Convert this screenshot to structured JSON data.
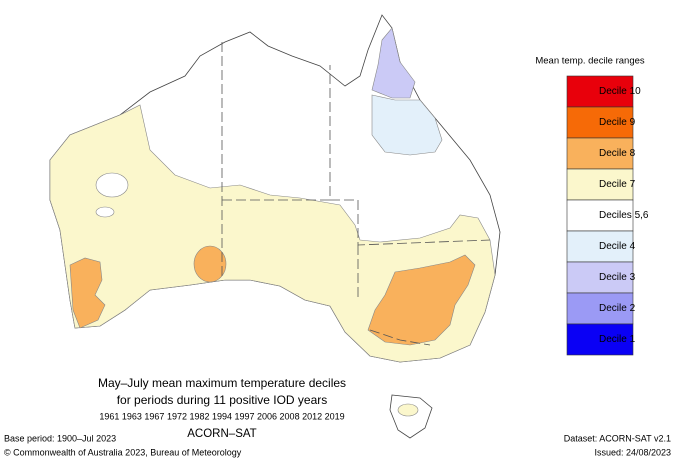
{
  "legend": {
    "title": "Mean temp. decile ranges",
    "items": [
      {
        "label": "Decile 10",
        "color": "#e8000b"
      },
      {
        "label": "Decile 9",
        "color": "#f66a07"
      },
      {
        "label": "Decile 8",
        "color": "#f9b15c"
      },
      {
        "label": "Decile 7",
        "color": "#fbf7cc"
      },
      {
        "label": "Deciles 5,6",
        "color": "#ffffff"
      },
      {
        "label": "Decile 4",
        "color": "#e3f0fa"
      },
      {
        "label": "Decile 3",
        "color": "#cbcaf6"
      },
      {
        "label": "Decile 2",
        "color": "#9b9af5"
      },
      {
        "label": "Decile 1",
        "color": "#0a00f5"
      }
    ]
  },
  "caption": {
    "title": "May–July mean maximum temperature deciles",
    "subtitle": "for periods during 11 positive IOD years",
    "years": "1961 1963 1967 1972 1982 1994 1997 2006 2008 2012 2019",
    "dataset_name": "ACORN–SAT"
  },
  "footer": {
    "base_period": "Base period: 1900–Jul 2023",
    "copyright": "© Commonwealth of Australia 2023, Bureau of Meteorology",
    "dataset": "Dataset: ACORN-SAT v2.1",
    "issued": "Issued: 24/08/2023"
  }
}
